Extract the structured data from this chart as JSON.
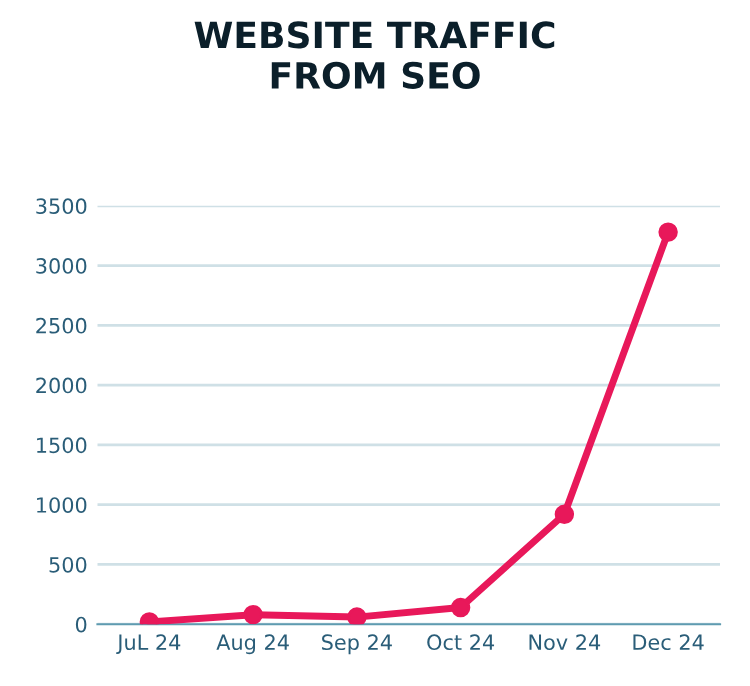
{
  "chart_data": {
    "type": "line",
    "title": "WEBSITE TRAFFIC\nFROM SEO",
    "categories": [
      "JuL 24",
      "Aug 24",
      "Sep 24",
      "Oct 24",
      "Nov 24",
      "Dec 24"
    ],
    "series": [
      {
        "color": "#e8185a",
        "values": [
          20,
          80,
          60,
          140,
          920,
          3280
        ]
      }
    ],
    "ylim": [
      0,
      3500
    ],
    "yticks": [
      0,
      500,
      1000,
      1500,
      2000,
      2500,
      3000,
      3500
    ],
    "grid": "y",
    "marker": "circle",
    "line_style": "solid"
  }
}
